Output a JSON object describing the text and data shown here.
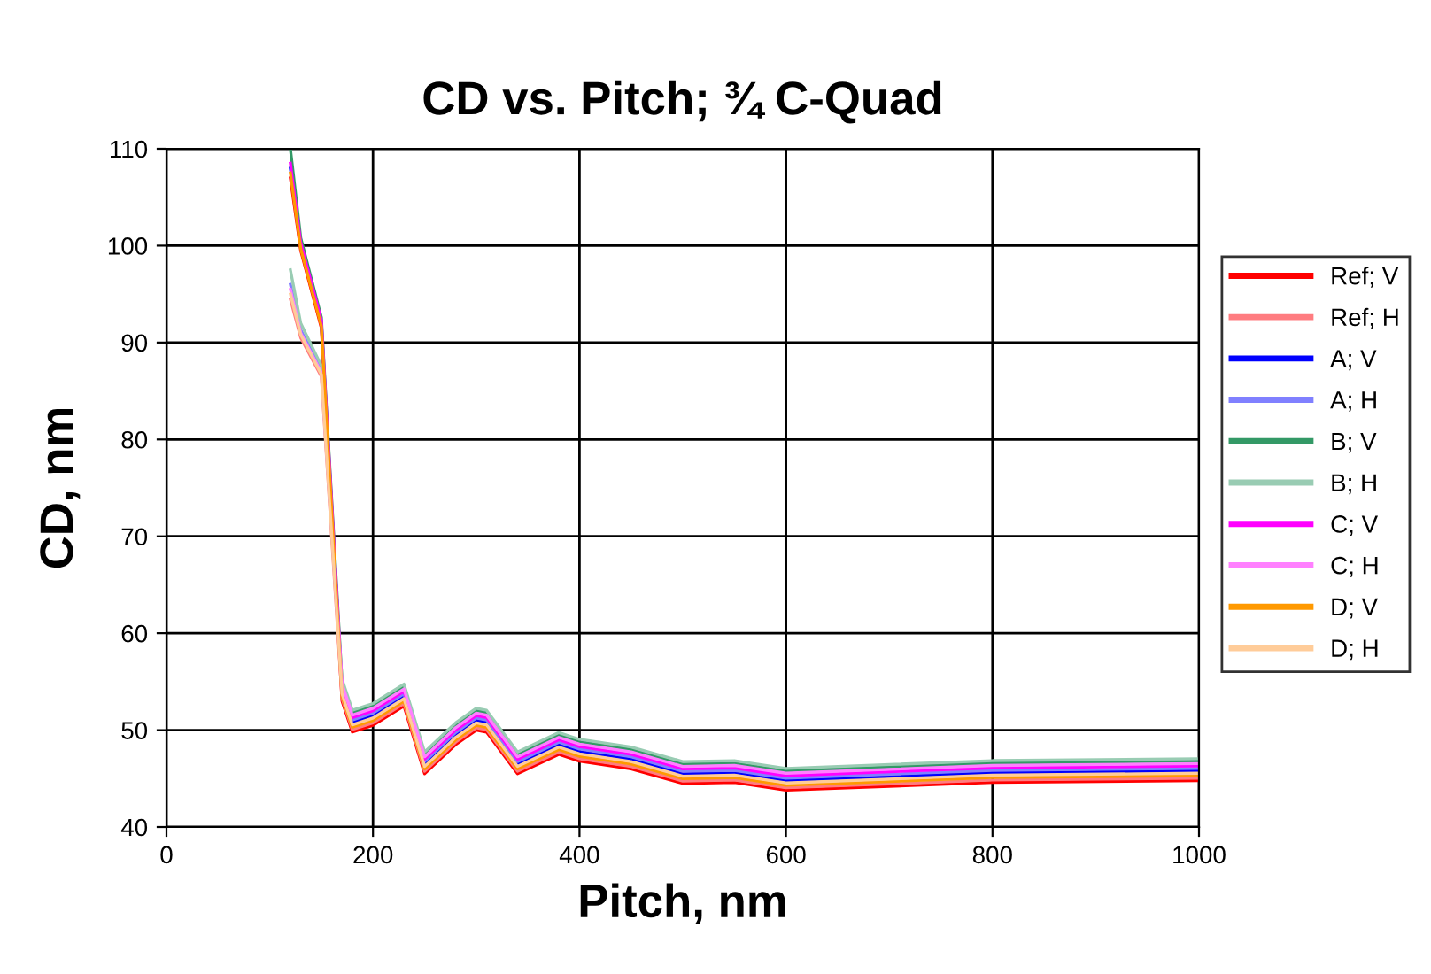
{
  "chart_data": {
    "type": "line",
    "title": "CD vs. Pitch; ¾ C-Quad",
    "xlabel": "Pitch, nm",
    "ylabel": "CD, nm",
    "x": [
      120,
      130,
      150,
      170,
      180,
      200,
      230,
      250,
      280,
      300,
      310,
      340,
      380,
      400,
      450,
      500,
      550,
      600,
      800,
      1000
    ],
    "xlim": [
      0,
      1000
    ],
    "xticks": [
      0,
      200,
      400,
      600,
      800,
      1000
    ],
    "ylim": [
      40,
      110
    ],
    "yticks": [
      40,
      50,
      60,
      70,
      80,
      90,
      100,
      110
    ],
    "grid": true,
    "legend": "right",
    "marker": "none",
    "line_style": "solid",
    "series": [
      {
        "name": "Ref; V",
        "color": "#ff0000",
        "values": [
          107,
          99.5,
          91.5,
          53,
          49.8,
          50.5,
          52.5,
          45.5,
          48.5,
          50,
          49.8,
          45.5,
          47.5,
          46.8,
          46,
          44.5,
          44.6,
          43.8,
          44.6,
          44.8
        ]
      },
      {
        "name": "Ref; H",
        "color": "#ff7c80",
        "values": [
          94.5,
          90.5,
          86.5,
          53.25,
          50.05,
          50.75,
          52.75,
          45.75,
          48.75,
          50.25,
          50.05,
          45.75,
          47.75,
          47.05,
          46.25,
          44.75,
          44.85,
          44.05,
          44.85,
          45.05
        ]
      },
      {
        "name": "A; V",
        "color": "#0000ff",
        "values": [
          108,
          100,
          92,
          54,
          50.8,
          51.5,
          53.5,
          46.5,
          49.5,
          51,
          50.8,
          46.5,
          48.5,
          47.8,
          47,
          45.5,
          45.6,
          44.8,
          45.6,
          45.8
        ]
      },
      {
        "name": "A; H",
        "color": "#8080ff",
        "values": [
          96,
          91.3,
          87.2,
          54.25,
          51.05,
          51.75,
          53.75,
          46.75,
          49.75,
          51.25,
          51.05,
          46.75,
          48.75,
          48.05,
          47.25,
          45.75,
          45.85,
          45.05,
          45.85,
          46.05
        ]
      },
      {
        "name": "B; V",
        "color": "#339966",
        "values": [
          110,
          100.8,
          92.6,
          55,
          51.8,
          52.5,
          54.5,
          47.5,
          50.5,
          52,
          51.8,
          47.5,
          49.5,
          48.8,
          48,
          46.5,
          46.6,
          45.8,
          46.6,
          46.8
        ]
      },
      {
        "name": "B; H",
        "color": "#99ccb3",
        "values": [
          97.5,
          92,
          87.6,
          55.25,
          52.05,
          52.75,
          54.75,
          47.75,
          50.75,
          52.25,
          52.05,
          47.75,
          49.75,
          49.05,
          48.25,
          46.75,
          46.85,
          46.05,
          46.85,
          47.05
        ]
      },
      {
        "name": "C; V",
        "color": "#ff00ff",
        "values": [
          108.5,
          100.3,
          92.3,
          54.5,
          51.3,
          52,
          54,
          47,
          50,
          51.5,
          51.3,
          47,
          49,
          48.3,
          47.5,
          46,
          46.1,
          45.3,
          46.1,
          46.3
        ]
      },
      {
        "name": "C; H",
        "color": "#ff80ff",
        "values": [
          95.5,
          91,
          86.9,
          54.75,
          51.55,
          52.25,
          54.25,
          47.25,
          50.25,
          51.75,
          51.55,
          47.25,
          49.25,
          48.55,
          47.75,
          46.25,
          46.35,
          45.55,
          46.35,
          46.55
        ]
      },
      {
        "name": "D; V",
        "color": "#ff9900",
        "values": [
          107.5,
          99.7,
          91.7,
          53.5,
          50.3,
          51,
          53,
          46,
          49,
          50.5,
          50.3,
          46,
          48,
          47.3,
          46.5,
          45,
          45.1,
          44.3,
          45.1,
          45.3
        ]
      },
      {
        "name": "D; H",
        "color": "#ffcc99",
        "values": [
          95,
          90.8,
          86.7,
          53.75,
          50.55,
          51.25,
          53.25,
          46.25,
          49.25,
          50.75,
          50.55,
          46.25,
          48.25,
          47.55,
          46.75,
          45.25,
          45.35,
          44.55,
          45.35,
          45.55
        ]
      }
    ]
  }
}
